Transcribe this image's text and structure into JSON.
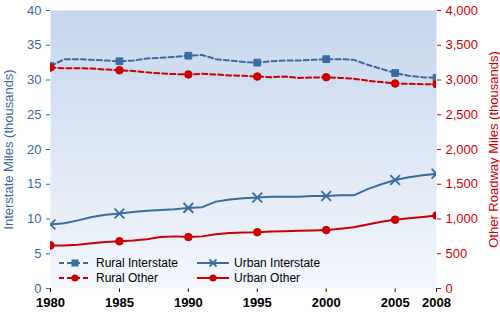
{
  "chart_data": {
    "type": "line",
    "ylabel": "Interstate Miles (thousands)",
    "y2label": "Other Roadway Miles (thousands)",
    "x": [
      1980,
      1981,
      1982,
      1983,
      1984,
      1985,
      1986,
      1987,
      1988,
      1989,
      1990,
      1991,
      1992,
      1993,
      1994,
      1995,
      1996,
      1997,
      1998,
      1999,
      2000,
      2001,
      2002,
      2003,
      2004,
      2005,
      2006,
      2007,
      2008
    ],
    "xlim": [
      1980,
      2008
    ],
    "xticks": [
      1980,
      1985,
      1990,
      1995,
      2000,
      2005,
      2008
    ],
    "ylim": [
      0,
      40
    ],
    "yticks": [
      0,
      5,
      10,
      15,
      20,
      25,
      30,
      35,
      40
    ],
    "y2lim": [
      0,
      4000
    ],
    "y2ticks": [
      0,
      500,
      {
        "value": 1000,
        "label": "1,000"
      },
      {
        "value": 1500,
        "label": "1,500"
      },
      {
        "value": 2000,
        "label": "2,000"
      },
      {
        "value": 2500,
        "label": "2,500"
      },
      {
        "value": 3000,
        "label": "3,000"
      },
      {
        "value": 3500,
        "label": "3,500"
      },
      {
        "value": 4000,
        "label": "4,000"
      }
    ],
    "grid": false,
    "legend": "bottom",
    "series": [
      {
        "name": "Rural Interstate",
        "color": "#3b6aa0",
        "marker": "square",
        "line_style": "dashed",
        "values": [
          32.0,
          33.0,
          33.0,
          32.9,
          32.8,
          32.7,
          32.8,
          33.1,
          33.2,
          33.3,
          33.5,
          33.6,
          33.0,
          32.8,
          32.6,
          32.5,
          32.7,
          32.8,
          32.8,
          32.9,
          33.0,
          33.0,
          32.9,
          32.2,
          31.6,
          31.0,
          30.6,
          30.4,
          30.3
        ]
      },
      {
        "name": "Urban Interstate",
        "color": "#3b6aa0",
        "marker": "x",
        "line_style": "solid",
        "values": [
          9.2,
          9.4,
          9.8,
          10.3,
          10.6,
          10.8,
          11.0,
          11.2,
          11.3,
          11.4,
          11.6,
          11.7,
          12.5,
          12.8,
          13.0,
          13.1,
          13.2,
          13.2,
          13.2,
          13.3,
          13.3,
          13.4,
          13.4,
          14.3,
          15.0,
          15.6,
          16.0,
          16.3,
          16.5
        ]
      },
      {
        "name": "Rural Other",
        "color": "#cc0000",
        "marker": "circle",
        "line_style": "dashed",
        "axis": "y2",
        "values": [
          3180,
          3170,
          3170,
          3165,
          3150,
          3140,
          3130,
          3110,
          3095,
          3085,
          3080,
          3090,
          3080,
          3065,
          3060,
          3050,
          3040,
          3050,
          3030,
          3035,
          3040,
          3030,
          3020,
          2990,
          2970,
          2950,
          2945,
          2940,
          2940
        ]
      },
      {
        "name": "Urban Other",
        "color": "#cc0000",
        "marker": "circle",
        "line_style": "solid",
        "axis": "y2",
        "values": [
          620,
          620,
          630,
          650,
          670,
          680,
          690,
          710,
          740,
          750,
          740,
          750,
          780,
          800,
          805,
          810,
          820,
          825,
          830,
          835,
          840,
          860,
          880,
          920,
          960,
          990,
          1010,
          1030,
          1050
        ]
      }
    ]
  }
}
